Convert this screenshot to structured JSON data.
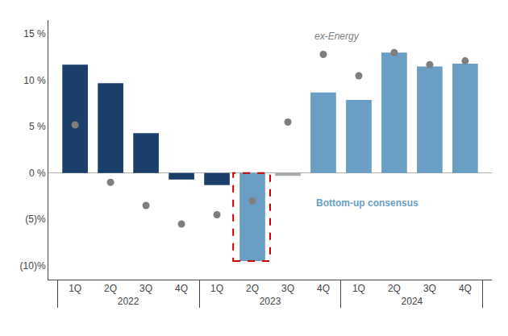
{
  "chart_data": {
    "type": "bar",
    "categories": [
      [
        "2022",
        "1Q"
      ],
      [
        "2022",
        "2Q"
      ],
      [
        "2022",
        "3Q"
      ],
      [
        "2022",
        "4Q"
      ],
      [
        "2023",
        "1Q"
      ],
      [
        "2023",
        "2Q"
      ],
      [
        "2023",
        "3Q"
      ],
      [
        "2023",
        "4Q"
      ],
      [
        "2024",
        "1Q"
      ],
      [
        "2024",
        "2Q"
      ],
      [
        "2024",
        "3Q"
      ],
      [
        "2024",
        "4Q"
      ]
    ],
    "series": [
      {
        "type": "bar",
        "colors": [
          "#1b3f6b",
          "#1b3f6b",
          "#1b3f6b",
          "#1b3f6b",
          "#1b3f6b",
          "#6a9ec4",
          "#aaaaaa",
          "#6a9ec4",
          "#6a9ec4",
          "#6a9ec4",
          "#6a9ec4",
          "#6a9ec4"
        ],
        "values": [
          11.7,
          9.7,
          4.3,
          -0.7,
          -1.3,
          -9.5,
          -0.3,
          8.7,
          7.9,
          13.0,
          11.5,
          11.8
        ]
      },
      {
        "type": "scatter",
        "marker": "circle",
        "color": "#7f7f7f",
        "values": [
          5.2,
          -1.0,
          -3.5,
          -5.5,
          -4.5,
          -3.0,
          5.5,
          12.8,
          10.5,
          13.0,
          11.7,
          12.1
        ]
      }
    ],
    "ylim": [
      -11.5,
      16.5
    ],
    "yticks": [
      {
        "value": -10,
        "label": "(10)%"
      },
      {
        "value": -5,
        "label": "(5)%"
      },
      {
        "value": 0,
        "label": "0 %"
      },
      {
        "value": 5,
        "label": "5 %"
      },
      {
        "value": 10,
        "label": "10 %"
      },
      {
        "value": 15,
        "label": "15 %"
      }
    ],
    "annotations": [
      {
        "text": "ex-Energy",
        "color": "#808080"
      },
      {
        "text": "Bottom-up consensus",
        "color": "#6a9ec4"
      }
    ],
    "grid": false
  }
}
